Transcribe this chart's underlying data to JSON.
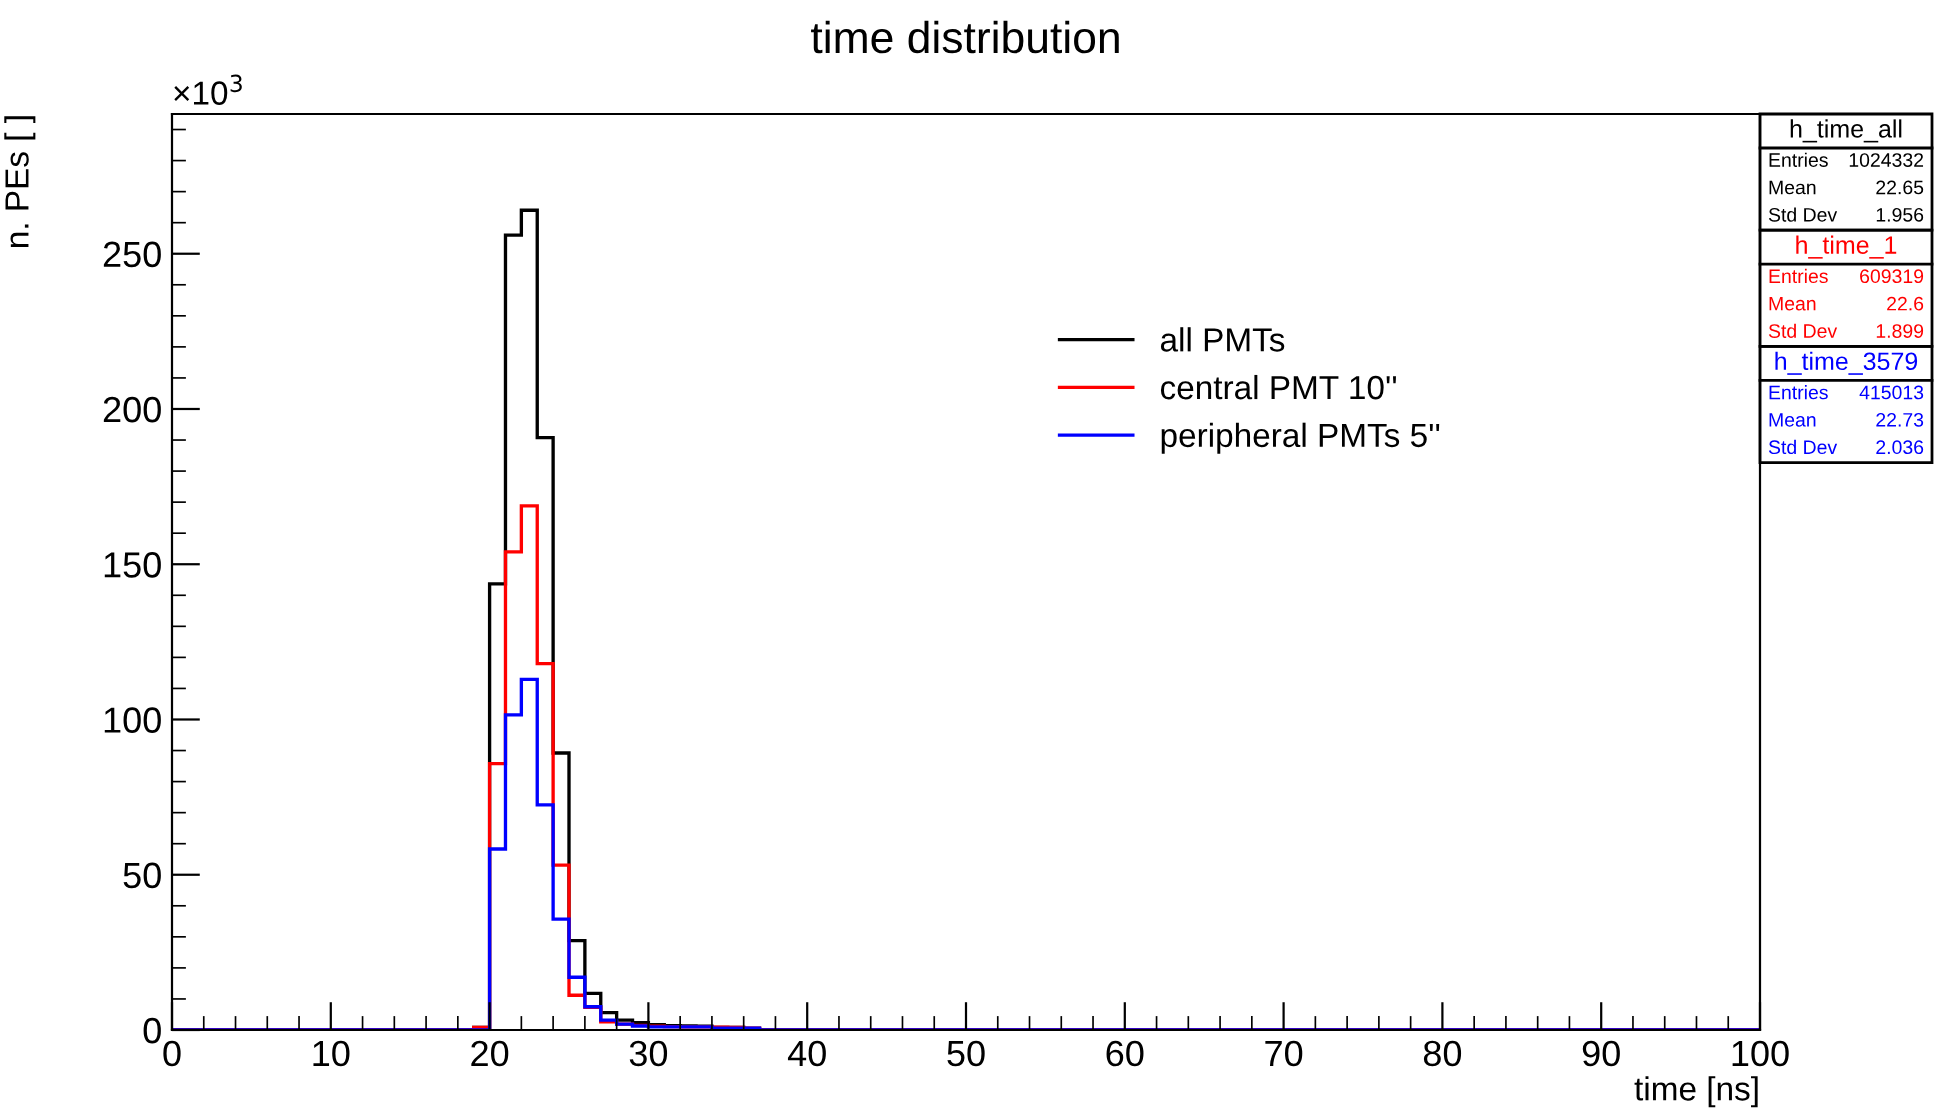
{
  "chart_data": {
    "type": "histogram",
    "title": "time distribution",
    "xlabel": "time [ns]",
    "ylabel": "n. PEs [ ]",
    "bins": [
      0,
      1,
      2,
      3,
      4,
      5,
      6,
      7,
      8,
      9,
      10,
      11,
      12,
      13,
      14,
      15,
      16,
      17,
      18,
      19,
      20,
      21,
      22,
      23,
      24,
      25,
      26,
      27,
      28,
      29,
      30,
      31,
      32,
      33,
      34,
      35,
      36,
      37,
      38,
      39,
      40,
      41,
      42,
      43,
      44,
      45,
      46,
      47,
      48,
      49,
      50,
      51,
      52,
      53,
      54,
      55,
      56,
      57,
      58,
      59,
      60,
      61,
      62,
      63,
      64,
      65,
      66,
      67,
      68,
      69,
      70,
      71,
      72,
      73,
      74,
      75,
      76,
      77,
      78,
      79,
      80,
      81,
      82,
      83,
      84,
      85,
      86,
      87,
      88,
      89,
      90,
      91,
      92,
      93,
      94,
      95,
      96,
      97,
      98,
      99,
      100
    ],
    "series": [
      {
        "name": "all PMTs",
        "color": "#000000",
        "values": [
          0,
          0,
          0,
          0,
          0,
          0,
          0,
          0,
          0,
          0,
          0,
          0,
          0,
          0,
          0,
          0,
          0,
          0,
          0,
          0.8,
          143.7,
          256,
          264,
          190.8,
          89.2,
          28.8,
          11.8,
          5.6,
          3.2,
          2.4,
          1.7,
          1.4,
          1.3,
          1.2,
          0.8,
          0.8,
          0.5,
          0,
          0,
          0,
          0,
          0,
          0,
          0,
          0,
          0,
          0,
          0,
          0,
          0,
          0,
          0,
          0,
          0,
          0,
          0,
          0,
          0,
          0,
          0,
          0,
          0,
          0,
          0,
          0,
          0,
          0,
          0,
          0,
          0,
          0,
          0,
          0,
          0,
          0,
          0,
          0,
          0,
          0,
          0,
          0,
          0,
          0,
          0,
          0,
          0,
          0,
          0,
          0,
          0,
          0,
          0,
          0,
          0,
          0,
          0,
          0,
          0,
          0,
          0
        ]
      },
      {
        "name": "central PMT 10''",
        "color": "#ff0000",
        "values": [
          0,
          0,
          0,
          0,
          0,
          0,
          0,
          0,
          0,
          0,
          0,
          0,
          0,
          0,
          0,
          0,
          0,
          0,
          0,
          0.8,
          85.8,
          154,
          168.8,
          118,
          53.1,
          11.2,
          7.3,
          2.6,
          1.9,
          1.5,
          1.2,
          1.1,
          1,
          1,
          0.9,
          0.8,
          0.6,
          0,
          0,
          0,
          0,
          0,
          0,
          0,
          0,
          0,
          0,
          0,
          0,
          0,
          0,
          0,
          0,
          0,
          0,
          0,
          0,
          0,
          0,
          0,
          0,
          0,
          0,
          0,
          0,
          0,
          0,
          0,
          0,
          0,
          0,
          0,
          0,
          0,
          0,
          0,
          0,
          0,
          0,
          0,
          0,
          0,
          0,
          0,
          0,
          0,
          0,
          0,
          0,
          0,
          0,
          0,
          0,
          0,
          0,
          0,
          0,
          0,
          0,
          0
        ]
      },
      {
        "name": "peripheral PMTs 5''",
        "color": "#0000ff",
        "values": [
          0,
          0,
          0,
          0,
          0,
          0,
          0,
          0,
          0,
          0,
          0,
          0,
          0,
          0,
          0,
          0,
          0,
          0,
          0,
          0,
          58.3,
          101.5,
          112.9,
          72.5,
          35.7,
          17,
          7.5,
          3.2,
          1.9,
          1.3,
          1,
          1,
          1,
          1,
          0.6,
          0.6,
          0.6,
          0,
          0,
          0,
          0,
          0,
          0,
          0,
          0,
          0,
          0,
          0,
          0,
          0,
          0,
          0,
          0,
          0,
          0,
          0,
          0,
          0,
          0,
          0,
          0,
          0,
          0,
          0,
          0,
          0,
          0,
          0,
          0,
          0,
          0,
          0,
          0,
          0,
          0,
          0,
          0,
          0,
          0,
          0,
          0,
          0,
          0,
          0,
          0,
          0,
          0,
          0,
          0,
          0,
          0,
          0,
          0,
          0,
          0,
          0,
          0,
          0,
          0,
          0
        ]
      }
    ],
    "xlim": [
      0,
      100
    ],
    "xticks": [
      0,
      10,
      20,
      30,
      40,
      50,
      60,
      70,
      80,
      90,
      100
    ],
    "ylim": [
      0,
      295
    ],
    "yticks": [
      0,
      50,
      100,
      150,
      200,
      250
    ],
    "grid": false,
    "legend": "top",
    "annotations": [
      "×10$^{3}$",
      "h_time_all",
      "Entries",
      "1024332",
      "Mean",
      "22.65",
      "Std Dev",
      "1.956",
      "h_time_1",
      "Entries",
      "609319",
      "Mean",
      "22.6",
      "Std Dev",
      "1.899",
      "h_time_3579",
      "Entries",
      "415013",
      "Mean",
      "22.73",
      "Std Dev",
      "2.036"
    ]
  }
}
